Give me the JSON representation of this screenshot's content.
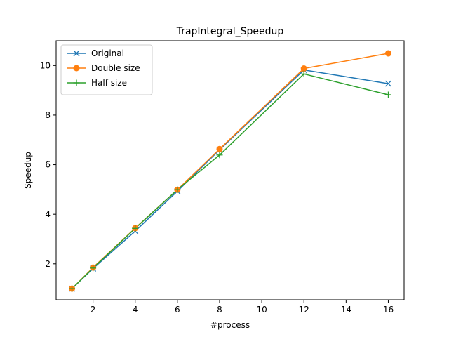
{
  "chart_data": {
    "type": "line",
    "title": "TrapIntegral_Speedup",
    "xlabel": "#process",
    "ylabel": "Speedup",
    "x": [
      1,
      2,
      4,
      6,
      8,
      12,
      16
    ],
    "xlim": [
      0.25,
      16.75
    ],
    "ylim": [
      0.55,
      11.0
    ],
    "xticks": [
      2,
      4,
      6,
      8,
      10,
      12,
      14,
      16
    ],
    "yticks": [
      2,
      4,
      6,
      8,
      10
    ],
    "grid": false,
    "legend_position": "top-left",
    "series": [
      {
        "name": "Original",
        "color": "#1f77b4",
        "marker": "x",
        "values": [
          1.0,
          1.81,
          3.32,
          4.93,
          6.6,
          9.82,
          9.27
        ]
      },
      {
        "name": "Double size",
        "color": "#ff7f0e",
        "marker": "o",
        "values": [
          1.0,
          1.85,
          3.44,
          4.99,
          6.63,
          9.88,
          10.49
        ]
      },
      {
        "name": "Half size",
        "color": "#2ca02c",
        "marker": "+",
        "values": [
          1.0,
          1.83,
          3.43,
          4.99,
          6.39,
          9.66,
          8.82
        ]
      }
    ]
  }
}
